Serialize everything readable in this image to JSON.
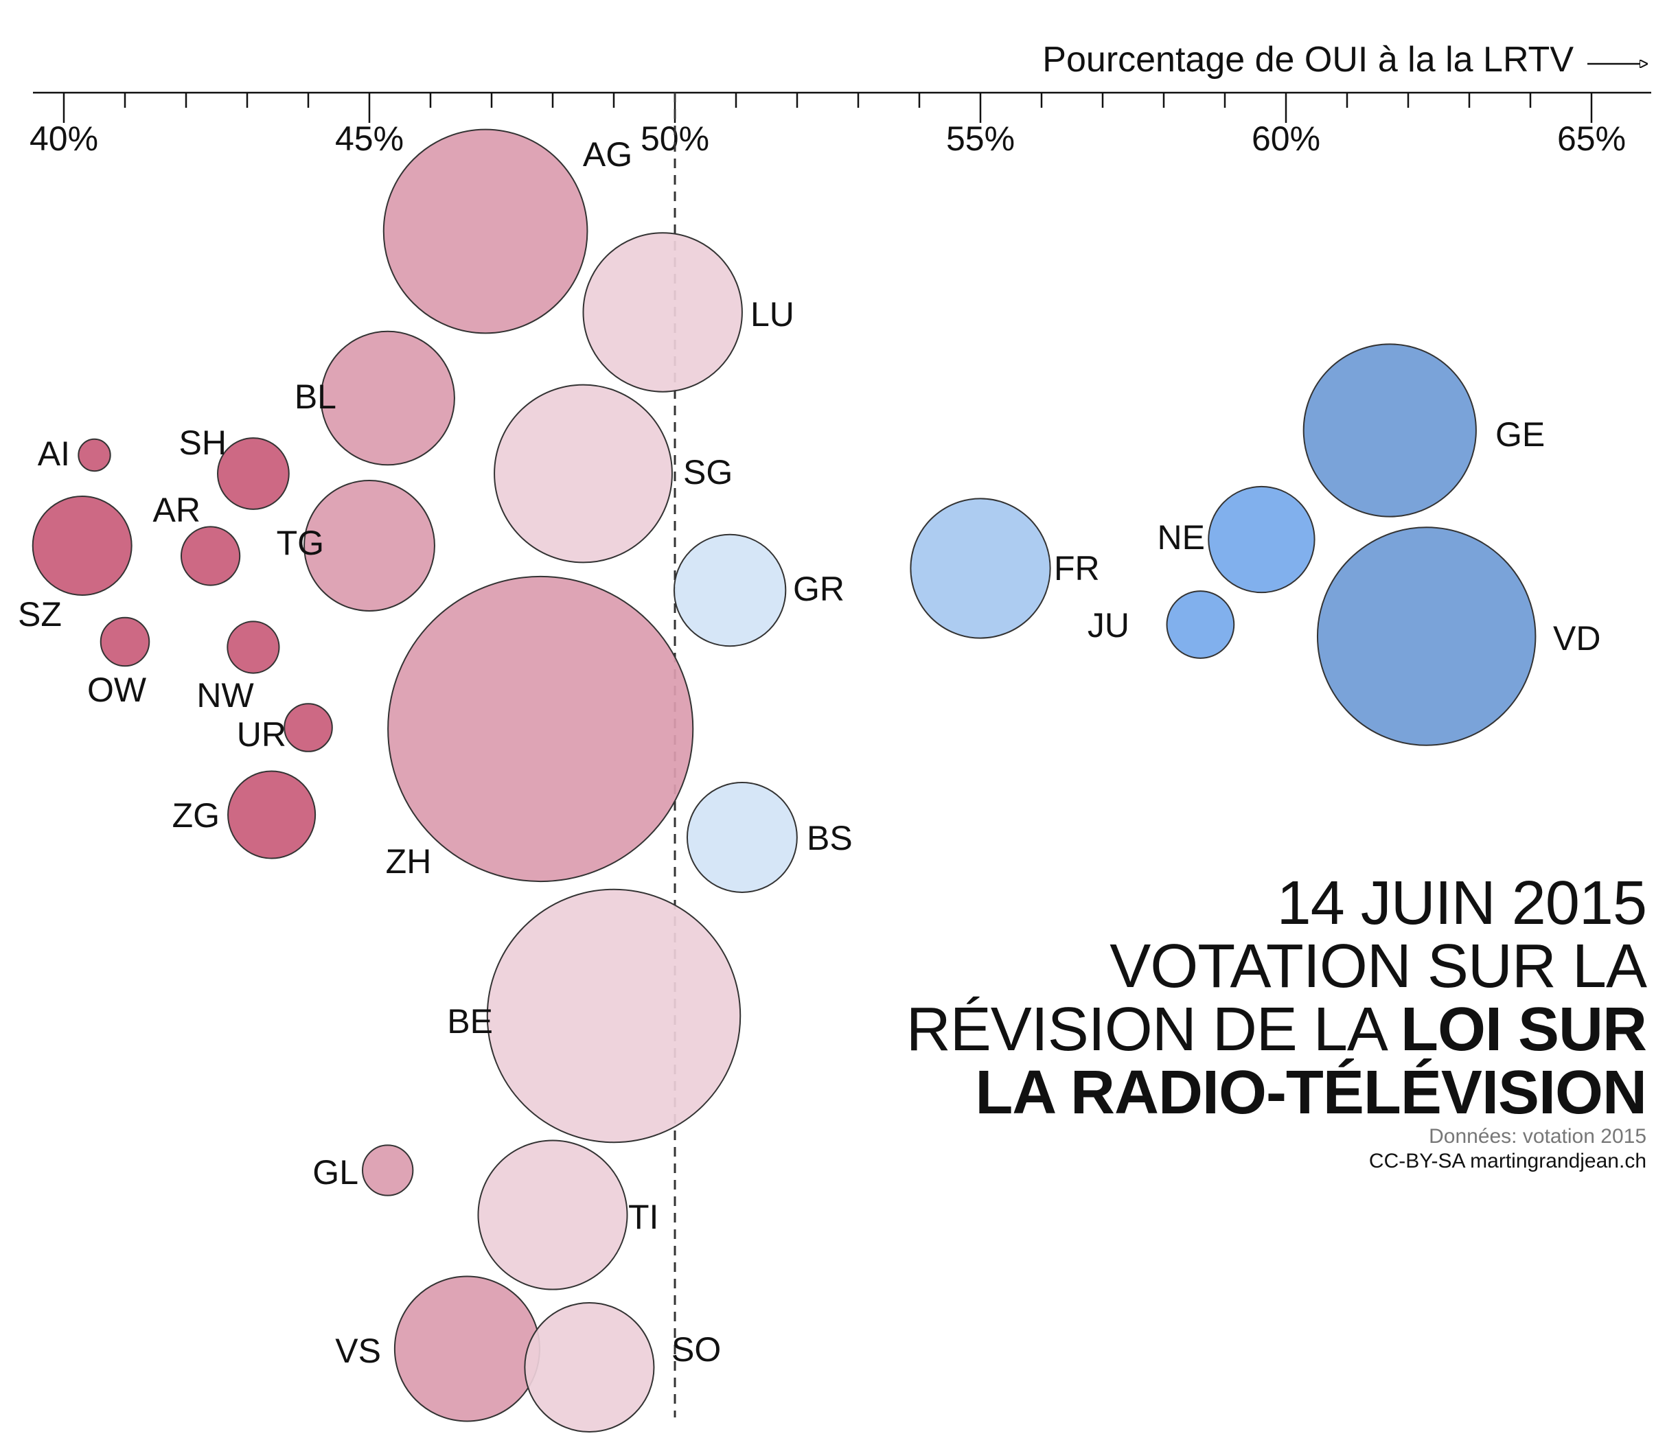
{
  "title": {
    "line1": "14 JUIN 2015",
    "line2": "VOTATION SUR LA",
    "line3_regular": "RÉVISION DE LA",
    "line3_bold": "LOI SUR",
    "line4_bold": "LA RADIO-TÉLÉVISION"
  },
  "source": {
    "data": "Données: votation 2015",
    "credit": "CC-BY-SA martingrandjean.ch"
  },
  "chart_data": {
    "type": "scatter",
    "subtype": "bubble",
    "xlabel": "Pourcentage de OUI à la la LRTV",
    "xlabel_position": "top-right",
    "xaxis_position": "top",
    "xlim": [
      40,
      65
    ],
    "xticks": [
      40,
      45,
      50,
      55,
      60,
      65
    ],
    "xtick_labels": [
      "40%",
      "45%",
      "50%",
      "55%",
      "60%",
      "65%"
    ],
    "reference_line": 50,
    "legend": "none",
    "grid": false,
    "colors": {
      "no_strong": "#c95c7a",
      "no_medium": "#db9caf",
      "no_light": "#edcfd9",
      "yes_light": "#d3e4f6",
      "yes_medium": "#a6c8f0",
      "yes_bright": "#76a9ec",
      "yes_strong": "#6f9bd6",
      "outline": "#333333"
    },
    "points": [
      {
        "label": "AG",
        "x": 46.9,
        "size": 654,
        "color": "no_medium"
      },
      {
        "label": "LU",
        "x": 49.8,
        "size": 398,
        "color": "no_light"
      },
      {
        "label": "BL",
        "x": 45.3,
        "size": 281,
        "color": "no_medium"
      },
      {
        "label": "SG",
        "x": 48.5,
        "size": 498,
        "color": "no_light"
      },
      {
        "label": "AI",
        "x": 40.5,
        "size": 16,
        "color": "no_strong"
      },
      {
        "label": "SH",
        "x": 43.1,
        "size": 80,
        "color": "no_strong"
      },
      {
        "label": "AR",
        "x": 42.4,
        "size": 54,
        "color": "no_strong"
      },
      {
        "label": "TG",
        "x": 45.0,
        "size": 268,
        "color": "no_medium"
      },
      {
        "label": "SZ",
        "x": 40.3,
        "size": 154,
        "color": "no_strong"
      },
      {
        "label": "OW",
        "x": 41.0,
        "size": 37,
        "color": "no_strong"
      },
      {
        "label": "NW",
        "x": 43.1,
        "size": 42,
        "color": "no_strong"
      },
      {
        "label": "UR",
        "x": 44.0,
        "size": 36,
        "color": "no_strong"
      },
      {
        "label": "ZG",
        "x": 43.4,
        "size": 120,
        "color": "no_strong"
      },
      {
        "label": "ZH",
        "x": 47.8,
        "size": 1466,
        "color": "no_medium"
      },
      {
        "label": "GR",
        "x": 50.9,
        "size": 196,
        "color": "yes_light"
      },
      {
        "label": "BS",
        "x": 51.1,
        "size": 190,
        "color": "yes_light"
      },
      {
        "label": "BE",
        "x": 49.0,
        "size": 1009,
        "color": "no_light"
      },
      {
        "label": "GL",
        "x": 45.3,
        "size": 40,
        "color": "no_medium"
      },
      {
        "label": "TI",
        "x": 48.0,
        "size": 350,
        "color": "no_light"
      },
      {
        "label": "VS",
        "x": 46.6,
        "size": 331,
        "color": "no_medium"
      },
      {
        "label": "SO",
        "x": 48.6,
        "size": 263,
        "color": "no_light"
      },
      {
        "label": "FR",
        "x": 55.0,
        "size": 307,
        "color": "yes_medium"
      },
      {
        "label": "NE",
        "x": 59.6,
        "size": 177,
        "color": "yes_bright"
      },
      {
        "label": "JU",
        "x": 58.6,
        "size": 71,
        "color": "yes_bright"
      },
      {
        "label": "GE",
        "x": 61.7,
        "size": 469,
        "color": "yes_strong"
      },
      {
        "label": "VD",
        "x": 62.3,
        "size": 749,
        "color": "yes_strong"
      }
    ]
  }
}
